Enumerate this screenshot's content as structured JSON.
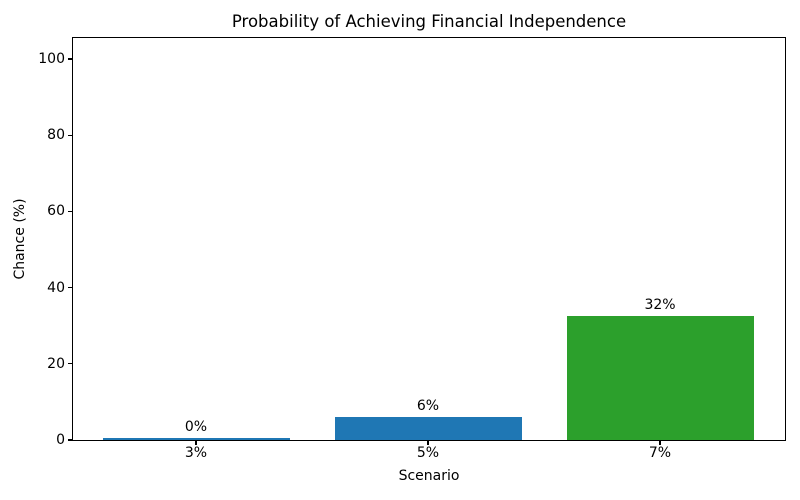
{
  "chart_data": {
    "type": "bar",
    "title": "Probability of Achieving Financial Independence",
    "xlabel": "Scenario",
    "ylabel": "Chance (%)",
    "categories": [
      "3%",
      "5%",
      "7%"
    ],
    "values": [
      0.5,
      6,
      32.5
    ],
    "bar_labels": [
      "0%",
      "6%",
      "32%"
    ],
    "bar_colors": [
      "#1f77b4",
      "#1f77b4",
      "#2ca02c"
    ],
    "yticks": [
      0,
      20,
      40,
      60,
      80,
      100
    ],
    "ylim": [
      0,
      105.5
    ],
    "grid": false,
    "legend": false,
    "background_color": "#ffffff",
    "text_color": "#000000",
    "spine_color": "#000000"
  }
}
